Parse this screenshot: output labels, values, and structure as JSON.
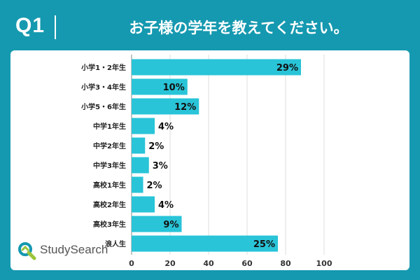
{
  "header": {
    "question_label": "Q1",
    "title": "お子様の学年を教えてください。"
  },
  "brand": {
    "name": "StudySearch",
    "accent": "#1599b0",
    "logo_colors": [
      "#1599b0",
      "#9bc43a"
    ]
  },
  "chart_data": {
    "type": "bar",
    "orientation": "horizontal",
    "title": "お子様の学年を教えてください。",
    "categories": [
      "小学1・2年生",
      "小学3・4年生",
      "小学5・6年生",
      "中学1年生",
      "中学2年生",
      "中学3年生",
      "高校1年生",
      "高校2年生",
      "高校3年生",
      "浪人生"
    ],
    "values": [
      88,
      29,
      35,
      12,
      7,
      9,
      6,
      12,
      26,
      76
    ],
    "data_labels": [
      "29%",
      "10%",
      "12%",
      "4%",
      "2%",
      "3%",
      "2%",
      "4%",
      "9%",
      "25%"
    ],
    "label_inside": [
      true,
      true,
      true,
      false,
      false,
      false,
      false,
      false,
      true,
      true
    ],
    "xlim": [
      0,
      100
    ],
    "xticks": [
      "0",
      "20",
      "40",
      "60",
      "80",
      "100"
    ],
    "xlabel": "",
    "ylabel": "",
    "grid": true,
    "bar_color": "#29c4d8"
  }
}
